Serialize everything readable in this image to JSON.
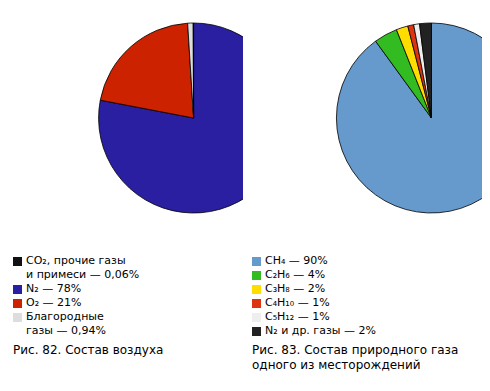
{
  "chart_data": [
    {
      "type": "pie",
      "title": "Рис. 82. Состав воздуха",
      "categories": [
        "N₂ — 78%",
        "O₂ — 21%",
        "Благородные\nгазы — 0,94%",
        "CO₂, прочие газы\nи примеси — 0,06%"
      ],
      "values": [
        78,
        21,
        0.94,
        0.06
      ],
      "colors": [
        "#2a1fa0",
        "#cc2200",
        "#dddddd",
        "#111111"
      ],
      "legend": "bottom"
    },
    {
      "type": "pie",
      "title": "Рис. 83. Состав природного газа одного из месторождений",
      "categories": [
        "CH₄ — 90%",
        "C₂H₆ — 4%",
        "C₃H₈ — 2%",
        "C₄H₁₀ — 1%",
        "C₅H₁₂ — 1%",
        "N₂ и др. газы — 2%"
      ],
      "values": [
        90,
        4,
        2,
        1,
        1,
        2
      ],
      "colors": [
        "#6699cc",
        "#33bb22",
        "#ffdd00",
        "#dd3311",
        "#eeeeee",
        "#222222"
      ],
      "legend": "bottom"
    }
  ]
}
